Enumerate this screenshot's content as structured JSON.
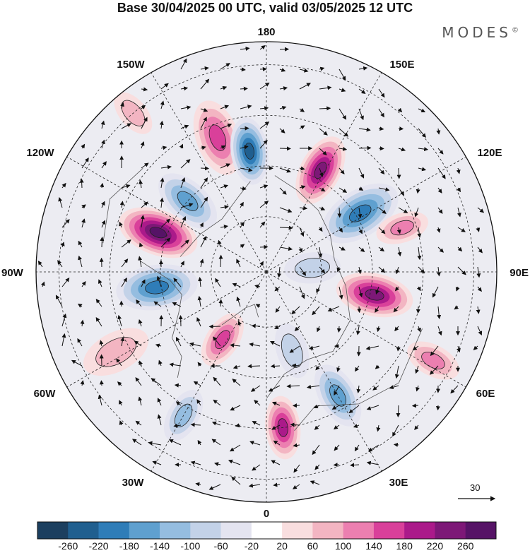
{
  "title": "Base 30/04/2025 00 UTC, valid 03/05/2025 12 UTC",
  "logo": "MODES",
  "logo_mark": "©",
  "longitude_labels": {
    "top": "180",
    "bottom": "0",
    "left": "90W",
    "right": "90E",
    "upper_left_1": "150W",
    "upper_left_2": "120W",
    "upper_right_1": "150E",
    "upper_right_2": "120E",
    "lower_left_1": "60W",
    "lower_left_2": "30W",
    "lower_right_1": "60E",
    "lower_right_2": "30E"
  },
  "vector_scale": "30",
  "colorbar": {
    "ticks": [
      "-260",
      "-220",
      "-180",
      "-140",
      "-100",
      "-60",
      "-20",
      "20",
      "60",
      "100",
      "140",
      "180",
      "220",
      "260"
    ],
    "colors": [
      "#1c3f5f",
      "#205f8f",
      "#2f7db8",
      "#5fa0cf",
      "#95bde0",
      "#c3d2e8",
      "#e4e4f0",
      "#ffffff",
      "#f9dedf",
      "#f3b5c2",
      "#ec7fb0",
      "#d9409a",
      "#ab1a8a",
      "#7d1877",
      "#561366"
    ]
  },
  "anomalies": [
    {
      "lon": -160,
      "r": 0.62,
      "value": 160,
      "size": 55
    },
    {
      "lon": -172,
      "r": 0.53,
      "value": -240,
      "size": 48
    },
    {
      "lon": 152,
      "r": 0.5,
      "value": 250,
      "size": 52
    },
    {
      "lon": 122,
      "r": 0.48,
      "value": -190,
      "size": 60
    },
    {
      "lon": 108,
      "r": 0.62,
      "value": 100,
      "size": 38
    },
    {
      "lon": -132,
      "r": 0.46,
      "value": -170,
      "size": 50
    },
    {
      "lon": -110,
      "r": 0.5,
      "value": 260,
      "size": 58
    },
    {
      "lon": -82,
      "r": 0.48,
      "value": -210,
      "size": 58
    },
    {
      "lon": -62,
      "r": 0.74,
      "value": 90,
      "size": 50
    },
    {
      "lon": -33,
      "r": 0.35,
      "value": 170,
      "size": 42
    },
    {
      "lon": -30,
      "r": 0.72,
      "value": -120,
      "size": 40
    },
    {
      "lon": 6,
      "r": 0.68,
      "value": 190,
      "size": 45
    },
    {
      "lon": 18,
      "r": 0.36,
      "value": -80,
      "size": 40
    },
    {
      "lon": 30,
      "r": 0.62,
      "value": -160,
      "size": 48
    },
    {
      "lon": 78,
      "r": 0.48,
      "value": 240,
      "size": 55
    },
    {
      "lon": 62,
      "r": 0.82,
      "value": 110,
      "size": 40
    },
    {
      "lon": 95,
      "r": 0.2,
      "value": -60,
      "size": 40
    },
    {
      "lon": -140,
      "r": 0.9,
      "value": 60,
      "size": 35
    }
  ]
}
